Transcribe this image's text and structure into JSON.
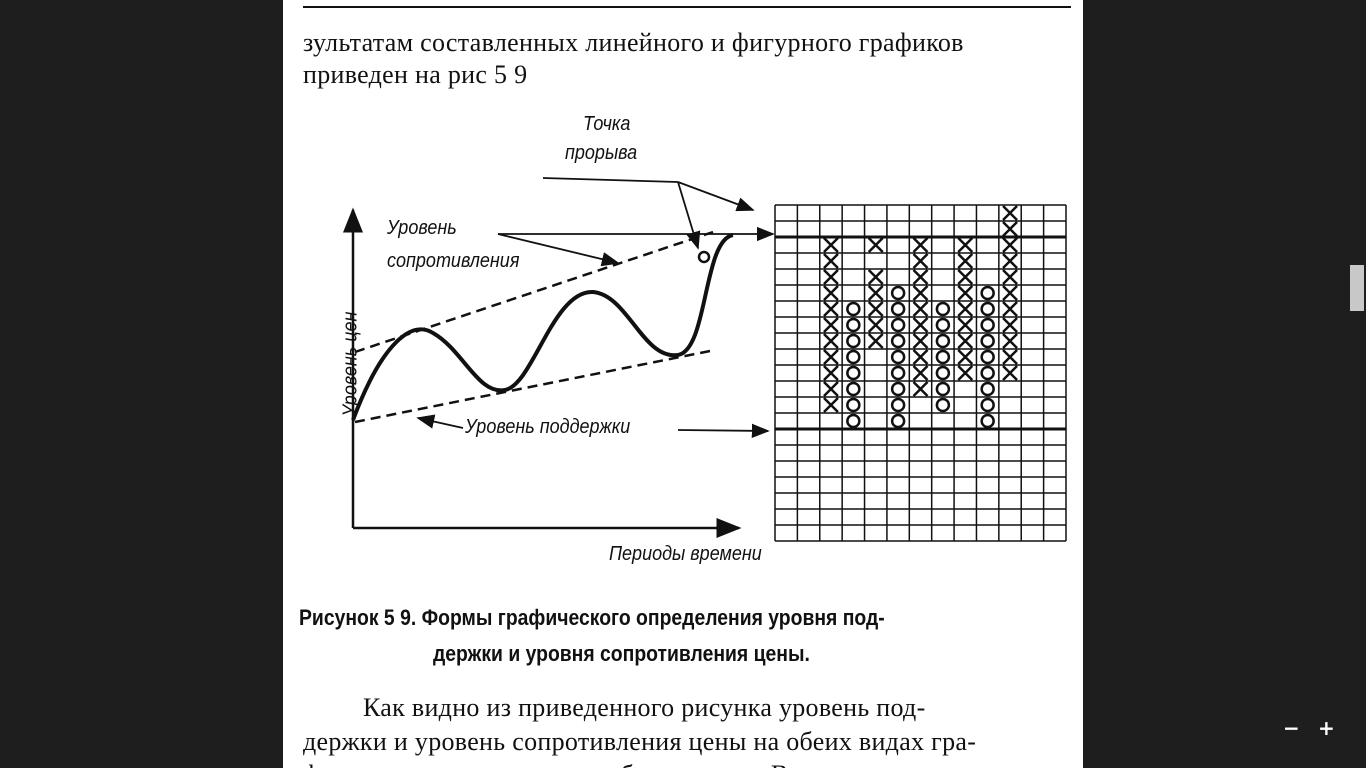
{
  "document": {
    "para_top": [
      "зультатам составленных линейного и фигурного графиков",
      "приведен на рис  5 9"
    ],
    "figure": {
      "labels": {
        "breakout": [
          "Точка",
          "прорыва"
        ],
        "resistance": [
          "Уровень",
          "сопротивления"
        ],
        "support": "Уровень поддержки",
        "y_axis": "Уровень цен",
        "x_axis": "Периоды времени"
      },
      "pf_columns": [
        {
          "mark": "X",
          "from": 2,
          "to": 12
        },
        {
          "mark": "O",
          "from": 6,
          "to": 13
        },
        {
          "mark": "X",
          "from": 2,
          "to": 2
        },
        {
          "mark": "X",
          "from": 4,
          "to": 8
        },
        {
          "mark": "O",
          "from": 5,
          "to": 13
        },
        {
          "mark": "X",
          "from": 2,
          "to": 11
        },
        {
          "mark": "O",
          "from": 6,
          "to": 12
        },
        {
          "mark": "X",
          "from": 2,
          "to": 10
        },
        {
          "mark": "O",
          "from": 5,
          "to": 13
        },
        {
          "mark": "X",
          "from": 0,
          "to": 10
        }
      ],
      "caption": [
        "Рисунок 5 9.  Формы графического определения уровня под-",
        "держки и уровня сопротивления цены."
      ]
    },
    "para_bottom": [
      "Как видно из приведенного рисунка уровень под-",
      "держки и уровень сопротивления цены на обеих видах гра-",
      "фиков представляются подобным путем. В разных этих"
    ]
  },
  "viewer": {
    "zoom_out": "−",
    "zoom_in": "+"
  }
}
